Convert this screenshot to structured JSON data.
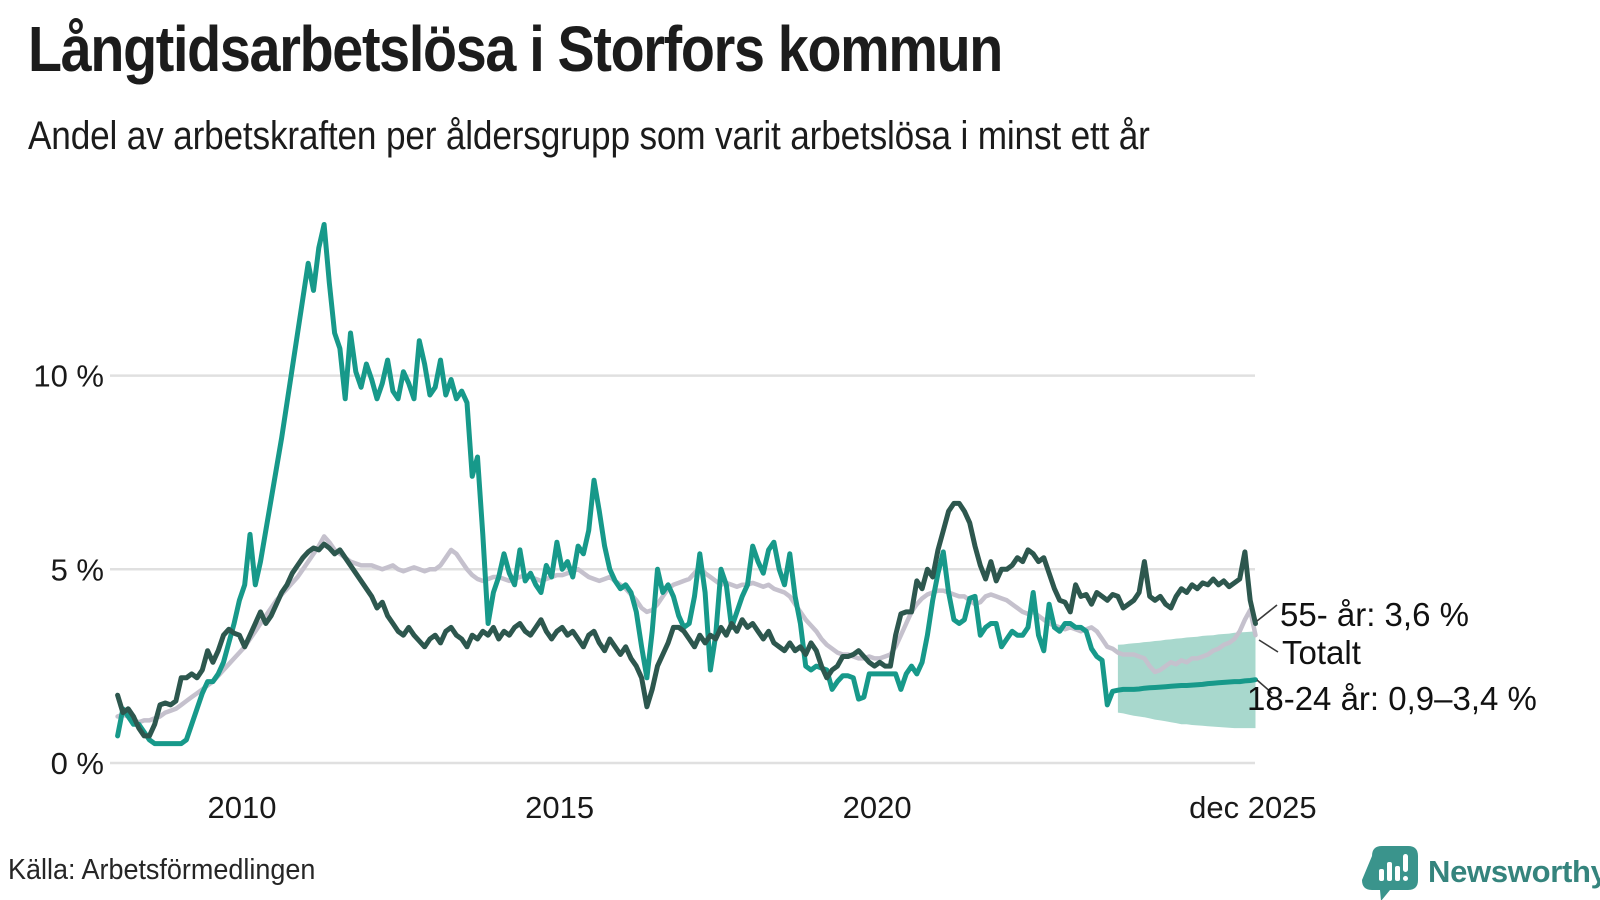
{
  "header": {
    "title": "Långtidsarbetslösa i Storfors kommun",
    "subtitle": "Andel av arbetskraften per åldersgrupp som varit arbetslösa i minst ett år"
  },
  "footer": {
    "source": "Källa: Arbetsförmedlingen",
    "logo_text": "Newsworthy"
  },
  "colors": {
    "youth_line": "#17998a",
    "total_line": "#c5c1cd",
    "senior_line": "#2d574e",
    "band_fill": "#a8d8cd",
    "grid": "#e0e0e0",
    "logo_teal": "#3a948c"
  },
  "chart_data": {
    "type": "line",
    "title": "Långtidsarbetslösa i Storfors kommun",
    "subtitle": "Andel av arbetskraften per åldersgrupp som varit arbetslösa i minst ett år",
    "x_unit": "month",
    "x_start_year": 2008,
    "x_end_label": "dec 2025",
    "ylim": [
      0,
      14.5
    ],
    "grid": "horizontal",
    "legend_position": "end-of-line-labels",
    "y_ticks": [
      {
        "label": "0 %",
        "value": 0
      },
      {
        "label": "5 %",
        "value": 5
      },
      {
        "label": "10 %",
        "value": 10
      }
    ],
    "x_ticks": [
      {
        "label": "2010",
        "year": 2010.0
      },
      {
        "label": "2015",
        "year": 2015.0
      },
      {
        "label": "2020",
        "year": 2020.0
      },
      {
        "label": "dec 2025",
        "year": 2025.917
      }
    ],
    "series": [
      {
        "name": "Totalt",
        "color": "#c5c1cd",
        "values": [
          1.2,
          1.25,
          1.2,
          1.1,
          1.05,
          1.1,
          1.1,
          1.15,
          1.2,
          1.3,
          1.35,
          1.4,
          1.5,
          1.6,
          1.7,
          1.8,
          1.9,
          2.0,
          2.1,
          2.25,
          2.4,
          2.55,
          2.7,
          2.85,
          3.0,
          3.2,
          3.4,
          3.6,
          3.8,
          4.0,
          4.2,
          4.35,
          4.5,
          4.65,
          4.8,
          5.0,
          5.2,
          5.4,
          5.6,
          5.85,
          5.7,
          5.5,
          5.4,
          5.3,
          5.2,
          5.15,
          5.1,
          5.1,
          5.1,
          5.05,
          5.0,
          5.05,
          5.1,
          5.0,
          4.95,
          5.0,
          5.05,
          5.0,
          4.95,
          5.0,
          5.0,
          5.1,
          5.3,
          5.5,
          5.4,
          5.2,
          5.0,
          4.85,
          4.75,
          4.7,
          4.75,
          4.8,
          4.8,
          4.75,
          4.7,
          4.75,
          4.8,
          4.85,
          4.8,
          4.75,
          4.7,
          4.75,
          4.8,
          4.85,
          4.85,
          4.9,
          4.95,
          5.0,
          4.9,
          4.8,
          4.75,
          4.7,
          4.75,
          4.8,
          4.7,
          4.6,
          4.5,
          4.35,
          4.2,
          4.0,
          3.9,
          3.95,
          4.1,
          4.3,
          4.5,
          4.6,
          4.65,
          4.7,
          4.75,
          4.9,
          5.05,
          4.9,
          4.8,
          4.7,
          4.6,
          4.65,
          4.6,
          4.55,
          4.6,
          4.6,
          4.65,
          4.6,
          4.55,
          4.6,
          4.5,
          4.45,
          4.4,
          4.3,
          4.1,
          3.9,
          3.7,
          3.55,
          3.4,
          3.2,
          3.05,
          2.95,
          2.85,
          2.8,
          2.8,
          2.75,
          2.7,
          2.7,
          2.75,
          2.7,
          2.7,
          2.75,
          2.8,
          3.0,
          3.3,
          3.6,
          3.9,
          4.1,
          4.25,
          4.35,
          4.4,
          4.45,
          4.45,
          4.4,
          4.35,
          4.3,
          4.3,
          4.2,
          4.1,
          4.15,
          4.3,
          4.35,
          4.3,
          4.25,
          4.2,
          4.1,
          4.0,
          3.9,
          3.85,
          3.9,
          3.8,
          3.7,
          3.6,
          3.55,
          3.5,
          3.45,
          3.5,
          3.45,
          3.4,
          3.45,
          3.5,
          3.4,
          3.2,
          3.0,
          2.95,
          2.85,
          2.8,
          2.8,
          2.8,
          2.75,
          2.7,
          2.5,
          2.35,
          2.4,
          2.5,
          2.6,
          2.55,
          2.65,
          2.6,
          2.7,
          2.7,
          2.75,
          2.8,
          2.9,
          2.95,
          3.05,
          3.1,
          3.2,
          3.4,
          3.7,
          3.95,
          3.3
        ]
      },
      {
        "name": "18-24 år",
        "color": "#17998a",
        "values": [
          0.7,
          1.4,
          1.2,
          1.0,
          1.0,
          0.8,
          0.6,
          0.5,
          0.5,
          0.5,
          0.5,
          0.5,
          0.5,
          0.6,
          1.0,
          1.4,
          1.8,
          2.1,
          2.1,
          2.3,
          2.6,
          3.1,
          3.6,
          4.2,
          4.6,
          5.9,
          4.6,
          5.2,
          6.0,
          6.8,
          7.6,
          8.4,
          9.3,
          10.2,
          11.1,
          12.0,
          12.9,
          12.2,
          13.3,
          13.9,
          12.4,
          11.1,
          10.7,
          9.4,
          11.1,
          10.1,
          9.7,
          10.3,
          9.9,
          9.4,
          9.8,
          10.4,
          9.6,
          9.4,
          10.1,
          9.8,
          9.4,
          10.9,
          10.3,
          9.5,
          9.7,
          10.4,
          9.5,
          9.9,
          9.4,
          9.6,
          9.3,
          7.4,
          7.9,
          5.9,
          3.6,
          4.4,
          4.8,
          5.4,
          4.9,
          4.6,
          5.5,
          4.7,
          4.9,
          4.6,
          4.4,
          5.1,
          4.8,
          5.7,
          5.0,
          5.2,
          4.8,
          5.6,
          5.4,
          6.0,
          7.3,
          6.5,
          5.6,
          5.0,
          4.7,
          4.5,
          4.6,
          4.4,
          3.9,
          3.0,
          2.2,
          3.4,
          5.0,
          4.4,
          4.6,
          4.3,
          3.8,
          3.5,
          3.6,
          4.3,
          5.4,
          4.4,
          2.4,
          3.3,
          5.0,
          4.6,
          3.5,
          3.9,
          4.3,
          4.6,
          5.6,
          5.2,
          4.9,
          5.5,
          5.7,
          5.0,
          4.6,
          5.4,
          4.3,
          3.6,
          2.5,
          2.4,
          2.5,
          2.45,
          2.4,
          1.9,
          2.1,
          2.25,
          2.25,
          2.2,
          1.65,
          1.7,
          2.3,
          2.3,
          2.3,
          2.3,
          2.3,
          2.3,
          1.9,
          2.3,
          2.5,
          2.3,
          2.6,
          3.3,
          4.2,
          4.9,
          5.45,
          4.4,
          3.7,
          3.6,
          3.7,
          4.25,
          4.3,
          3.3,
          3.5,
          3.6,
          3.6,
          3.0,
          3.2,
          3.4,
          3.3,
          3.3,
          3.5,
          4.4,
          3.3,
          2.9,
          4.1,
          3.5,
          3.4,
          3.6,
          3.6,
          3.5,
          3.5,
          3.4,
          2.95,
          2.75,
          2.65,
          1.5,
          1.85,
          1.88,
          1.9,
          1.9,
          1.9,
          1.91,
          1.93,
          1.94,
          1.95,
          1.96,
          1.97,
          1.98,
          1.99,
          2.0,
          2.0,
          2.01,
          2.02,
          2.03,
          2.05,
          2.06,
          2.07,
          2.08,
          2.09,
          2.1,
          2.1,
          2.12,
          2.13,
          2.15
        ]
      },
      {
        "name": "55- år",
        "color": "#2d574e",
        "values": [
          1.75,
          1.3,
          1.4,
          1.2,
          0.9,
          0.7,
          0.7,
          1.0,
          1.5,
          1.55,
          1.5,
          1.6,
          2.2,
          2.2,
          2.3,
          2.2,
          2.4,
          2.9,
          2.6,
          2.9,
          3.3,
          3.45,
          3.35,
          3.3,
          3.0,
          3.3,
          3.6,
          3.9,
          3.6,
          3.8,
          4.1,
          4.4,
          4.6,
          4.9,
          5.1,
          5.3,
          5.45,
          5.55,
          5.5,
          5.65,
          5.55,
          5.4,
          5.5,
          5.3,
          5.1,
          4.9,
          4.7,
          4.5,
          4.3,
          4.0,
          4.15,
          3.8,
          3.6,
          3.4,
          3.3,
          3.5,
          3.3,
          3.15,
          3.0,
          3.2,
          3.3,
          3.1,
          3.4,
          3.5,
          3.3,
          3.2,
          3.0,
          3.3,
          3.2,
          3.4,
          3.3,
          3.5,
          3.2,
          3.4,
          3.3,
          3.5,
          3.6,
          3.4,
          3.3,
          3.5,
          3.7,
          3.4,
          3.2,
          3.4,
          3.5,
          3.3,
          3.4,
          3.2,
          3.0,
          3.3,
          3.4,
          3.1,
          2.9,
          3.2,
          3.0,
          2.8,
          3.0,
          2.7,
          2.5,
          2.2,
          1.45,
          1.9,
          2.5,
          2.8,
          3.1,
          3.5,
          3.5,
          3.4,
          3.2,
          3.0,
          3.3,
          3.1,
          3.3,
          3.2,
          3.5,
          3.3,
          3.6,
          3.4,
          3.7,
          3.5,
          3.6,
          3.4,
          3.2,
          3.4,
          3.1,
          3.0,
          2.9,
          3.1,
          2.9,
          3.0,
          2.8,
          3.1,
          2.9,
          2.5,
          2.2,
          2.4,
          2.5,
          2.75,
          2.75,
          2.8,
          2.9,
          2.75,
          2.6,
          2.5,
          2.6,
          2.5,
          2.5,
          3.3,
          3.85,
          3.9,
          3.9,
          4.7,
          4.5,
          5.0,
          4.8,
          5.5,
          6.0,
          6.5,
          6.7,
          6.7,
          6.5,
          6.2,
          5.6,
          5.1,
          4.75,
          5.2,
          4.7,
          5.0,
          5.0,
          5.1,
          5.3,
          5.2,
          5.5,
          5.4,
          5.2,
          5.3,
          4.9,
          4.5,
          4.2,
          4.15,
          3.9,
          4.6,
          4.3,
          4.35,
          4.1,
          4.4,
          4.3,
          4.2,
          4.35,
          4.3,
          4.0,
          4.1,
          4.2,
          4.4,
          5.2,
          4.3,
          4.2,
          4.3,
          4.1,
          4.0,
          4.3,
          4.5,
          4.4,
          4.6,
          4.5,
          4.65,
          4.6,
          4.75,
          4.6,
          4.7,
          4.55,
          4.65,
          4.75,
          5.45,
          4.2,
          3.6
        ]
      }
    ],
    "forecast_band": {
      "series": "18-24 år",
      "color": "#a8d8cd",
      "start_index": 189,
      "lower": [
        1.3,
        1.28,
        1.25,
        1.22,
        1.2,
        1.18,
        1.15,
        1.12,
        1.1,
        1.08,
        1.05,
        1.03,
        1.0,
        1.0,
        0.98,
        0.97,
        0.96,
        0.95,
        0.94,
        0.93,
        0.92,
        0.91,
        0.9,
        0.9,
        0.9,
        0.9,
        0.9
      ],
      "upper": [
        3.05,
        3.06,
        3.08,
        3.09,
        3.1,
        3.12,
        3.13,
        3.15,
        3.16,
        3.18,
        3.19,
        3.21,
        3.22,
        3.24,
        3.25,
        3.26,
        3.28,
        3.29,
        3.3,
        3.32,
        3.33,
        3.34,
        3.36,
        3.37,
        3.38,
        3.39,
        3.4
      ]
    },
    "annotations": [
      {
        "text": "55- år: 3,6 %"
      },
      {
        "text": "Totalt"
      },
      {
        "text": "18-24 år: 0,9–3,4 %"
      }
    ]
  }
}
